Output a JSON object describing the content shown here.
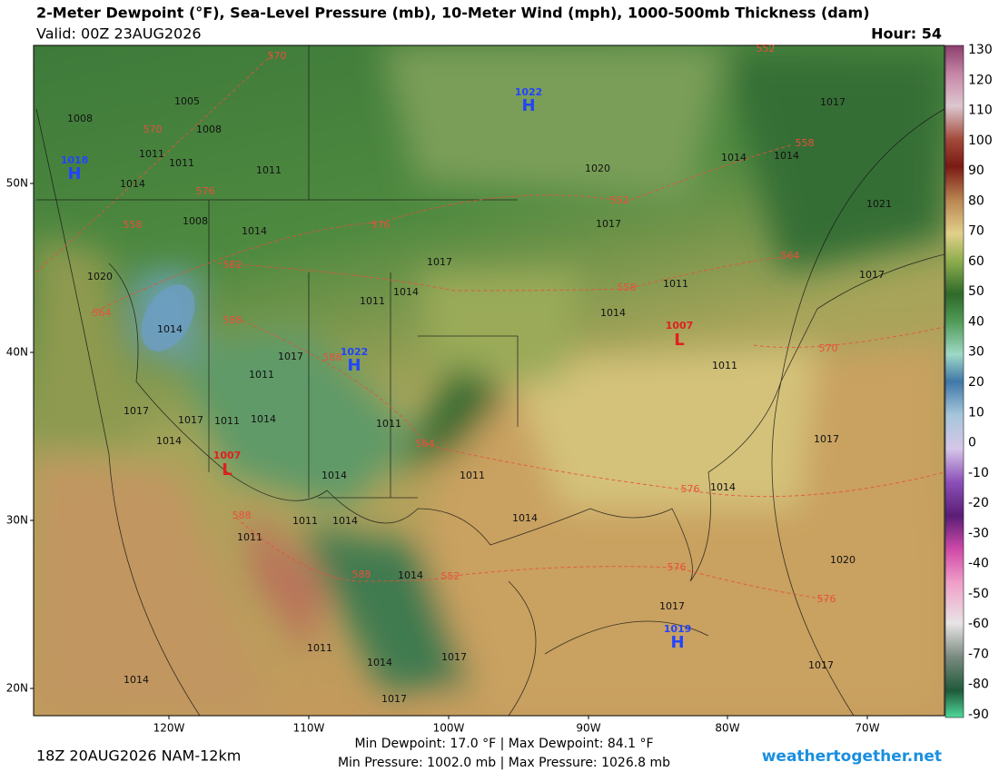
{
  "header": {
    "title": "2-Meter Dewpoint (°F), Sea-Level Pressure (mb), 10-Meter Wind (mph), 1000-500mb Thickness (dam)",
    "valid": "Valid: 00Z 23AUG2026",
    "hour": "Hour: 54"
  },
  "colorbar": {
    "ticks": [
      130,
      120,
      110,
      100,
      90,
      80,
      70,
      60,
      50,
      40,
      30,
      20,
      10,
      0,
      -10,
      -20,
      -30,
      -40,
      -50,
      -60,
      -70,
      -80,
      -90
    ]
  },
  "axes": {
    "lat_labels": [
      "50N",
      "40N",
      "30N",
      "20N"
    ],
    "lon_labels": [
      "120W",
      "110W",
      "100W",
      "90W",
      "80W",
      "70W"
    ]
  },
  "map": {
    "highs": [
      {
        "value": 1022,
        "symbol": "H"
      },
      {
        "value": 1018,
        "symbol": "H"
      },
      {
        "value": 1022,
        "symbol": "H"
      },
      {
        "value": 1019,
        "symbol": "H"
      }
    ],
    "lows": [
      {
        "value": 1007,
        "symbol": "L"
      },
      {
        "value": 1007,
        "symbol": "L"
      }
    ],
    "isobar_labels": [
      1005,
      1008,
      1008,
      1011,
      1011,
      1014,
      1011,
      1008,
      1014,
      1020,
      1014,
      1011,
      1014,
      1017,
      1014,
      1011,
      1017,
      1020,
      1014,
      1014,
      1017,
      1017,
      1021,
      1011,
      1017,
      1014,
      1020,
      1017,
      1017,
      1014,
      1011,
      1011,
      1014,
      1011,
      1014,
      1014,
      1017,
      1014,
      1017,
      1011,
      1014,
      1017,
      1017,
      1014,
      1011,
      1017,
      1011,
      1014,
      1011
    ],
    "thickness_labels": [
      570,
      570,
      576,
      558,
      582,
      576,
      552,
      564,
      588,
      588,
      558,
      564,
      558,
      570,
      564,
      576,
      588,
      576,
      576,
      588,
      552,
      552
    ]
  },
  "footer": {
    "run": "18Z 20AUG2026 NAM-12km",
    "dewpoint_range": "Min Dewpoint:  17.0 °F | Max Dewpoint:  84.1 °F",
    "pressure_range": "Min Pressure: 1002.0 mb | Max Pressure: 1026.8 mb",
    "site": "weathertogether.net"
  }
}
